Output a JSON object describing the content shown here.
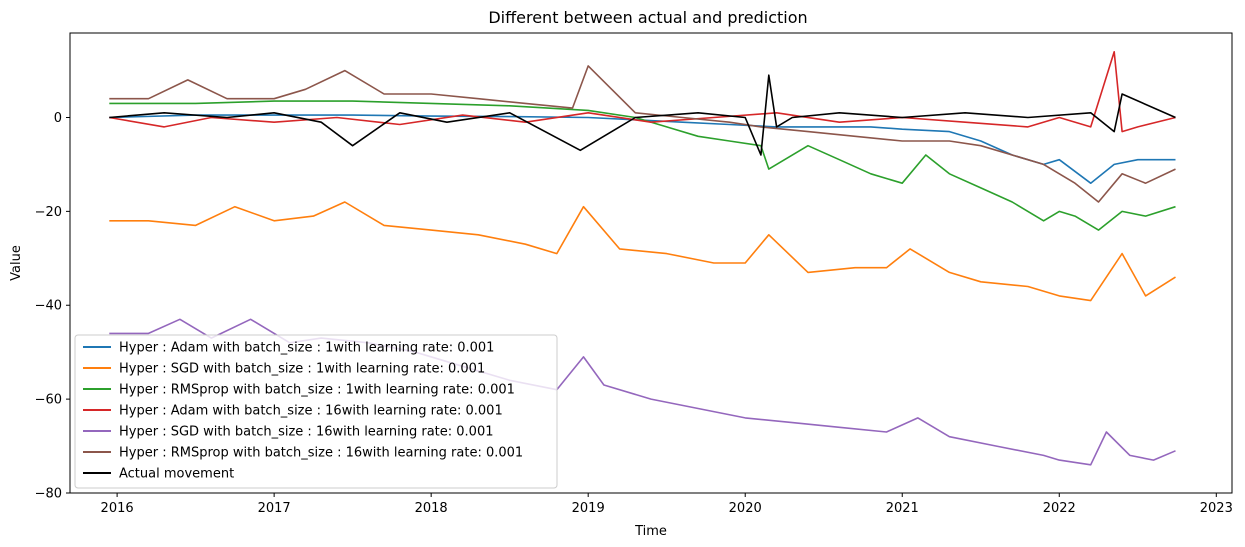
{
  "chart_data": {
    "type": "line",
    "title": "Different between actual and prediction",
    "xlabel": "Time",
    "ylabel": "Value",
    "xlim": [
      2015.7,
      2023.1
    ],
    "ylim": [
      -80,
      18
    ],
    "x_ticks": [
      2016,
      2017,
      2018,
      2019,
      2020,
      2021,
      2022,
      2023
    ],
    "y_ticks": [
      0,
      -20,
      -40,
      -60,
      -80
    ],
    "grid": false,
    "legend_position": "lower-left",
    "series": [
      {
        "name": "Hyper : Adam with batch_size : 1with learning rate: 0.001",
        "color": "#1f77b4",
        "x": [
          2015.95,
          2016.5,
          2017.0,
          2017.5,
          2018.0,
          2018.5,
          2019.0,
          2019.3,
          2019.6,
          2019.9,
          2020.2,
          2020.5,
          2020.8,
          2021.0,
          2021.3,
          2021.5,
          2021.7,
          2021.9,
          2022.0,
          2022.2,
          2022.35,
          2022.5,
          2022.74
        ],
        "y": [
          0,
          0.5,
          0.5,
          0.5,
          0.3,
          0.2,
          0,
          -0.5,
          -1,
          -1.5,
          -2,
          -2,
          -2,
          -2.5,
          -3,
          -5,
          -8,
          -10,
          -9,
          -14,
          -10,
          -9,
          -9
        ]
      },
      {
        "name": "Hyper : SGD with batch_size : 1with learning rate: 0.001",
        "color": "#ff7f0e",
        "x": [
          2015.95,
          2016.2,
          2016.5,
          2016.75,
          2017.0,
          2017.25,
          2017.45,
          2017.7,
          2018.0,
          2018.3,
          2018.6,
          2018.8,
          2018.97,
          2019.2,
          2019.5,
          2019.8,
          2020.0,
          2020.15,
          2020.4,
          2020.7,
          2020.9,
          2021.05,
          2021.3,
          2021.5,
          2021.8,
          2022.0,
          2022.2,
          2022.3,
          2022.4,
          2022.55,
          2022.74
        ],
        "y": [
          -22,
          -22,
          -23,
          -19,
          -22,
          -21,
          -18,
          -23,
          -24,
          -25,
          -27,
          -29,
          -19,
          -28,
          -29,
          -31,
          -31,
          -25,
          -33,
          -32,
          -32,
          -28,
          -33,
          -35,
          -36,
          -38,
          -39,
          -34,
          -29,
          -38,
          -34
        ]
      },
      {
        "name": "Hyper : RMSprop with batch_size : 1with learning rate: 0.001",
        "color": "#2ca02c",
        "x": [
          2015.95,
          2016.5,
          2017.0,
          2017.5,
          2018.0,
          2018.5,
          2019.0,
          2019.3,
          2019.5,
          2019.7,
          2019.9,
          2020.1,
          2020.15,
          2020.4,
          2020.6,
          2020.8,
          2021.0,
          2021.15,
          2021.3,
          2021.5,
          2021.7,
          2021.9,
          2022.0,
          2022.1,
          2022.25,
          2022.4,
          2022.55,
          2022.74
        ],
        "y": [
          3,
          3,
          3.5,
          3.5,
          3,
          2.5,
          1.5,
          0,
          -2,
          -4,
          -5,
          -6,
          -11,
          -6,
          -9,
          -12,
          -14,
          -8,
          -12,
          -15,
          -18,
          -22,
          -20,
          -21,
          -24,
          -20,
          -21,
          -19
        ]
      },
      {
        "name": "Hyper : Adam with batch_size : 16with learning rate: 0.001",
        "color": "#d62728",
        "x": [
          2015.95,
          2016.3,
          2016.6,
          2017.0,
          2017.4,
          2017.8,
          2018.2,
          2018.6,
          2019.0,
          2019.4,
          2019.8,
          2020.2,
          2020.6,
          2021.0,
          2021.4,
          2021.8,
          2022.0,
          2022.2,
          2022.35,
          2022.4,
          2022.5,
          2022.74
        ],
        "y": [
          0,
          -2,
          0,
          -1,
          0,
          -1.5,
          0.5,
          -1,
          1,
          -1,
          0,
          1,
          -1,
          0,
          -1,
          -2,
          0,
          -2,
          14,
          -3,
          -2,
          0
        ]
      },
      {
        "name": "Hyper : SGD with batch_size : 16with learning rate: 0.001",
        "color": "#9467bd",
        "x": [
          2015.95,
          2016.2,
          2016.4,
          2016.6,
          2016.85,
          2017.1,
          2017.3,
          2017.6,
          2017.9,
          2018.2,
          2018.5,
          2018.8,
          2018.97,
          2019.1,
          2019.4,
          2019.7,
          2020.0,
          2020.3,
          2020.6,
          2020.9,
          2021.1,
          2021.3,
          2021.6,
          2021.9,
          2022.0,
          2022.2,
          2022.3,
          2022.45,
          2022.6,
          2022.74
        ],
        "y": [
          -46,
          -46,
          -43,
          -47,
          -43,
          -48,
          -47,
          -48,
          -50,
          -53,
          -56,
          -58,
          -51,
          -57,
          -60,
          -62,
          -64,
          -65,
          -66,
          -67,
          -64,
          -68,
          -70,
          -72,
          -73,
          -74,
          -67,
          -72,
          -73,
          -71
        ]
      },
      {
        "name": "Hyper : RMSprop with batch_size : 16with learning rate: 0.001",
        "color": "#8c564b",
        "x": [
          2015.95,
          2016.2,
          2016.45,
          2016.7,
          2017.0,
          2017.2,
          2017.45,
          2017.7,
          2018.0,
          2018.3,
          2018.6,
          2018.9,
          2019.0,
          2019.3,
          2019.6,
          2019.9,
          2020.1,
          2020.4,
          2020.7,
          2021.0,
          2021.3,
          2021.5,
          2021.7,
          2021.9,
          2022.1,
          2022.25,
          2022.4,
          2022.55,
          2022.74
        ],
        "y": [
          4,
          4,
          8,
          4,
          4,
          6,
          10,
          5,
          5,
          4,
          3,
          2,
          11,
          1,
          0,
          -1,
          -2,
          -3,
          -4,
          -5,
          -5,
          -6,
          -8,
          -10,
          -14,
          -18,
          -12,
          -14,
          -11
        ]
      },
      {
        "name": "Actual movement",
        "color": "#000000",
        "x": [
          2015.95,
          2016.3,
          2016.7,
          2017.0,
          2017.3,
          2017.5,
          2017.8,
          2018.1,
          2018.5,
          2018.95,
          2019.3,
          2019.7,
          2020.0,
          2020.1,
          2020.15,
          2020.2,
          2020.3,
          2020.6,
          2021.0,
          2021.4,
          2021.8,
          2022.2,
          2022.35,
          2022.4,
          2022.74
        ],
        "y": [
          0,
          1,
          0,
          1,
          -1,
          -6,
          1,
          -1,
          1,
          -7,
          0,
          1,
          0,
          -8,
          9,
          -2,
          0,
          1,
          0,
          1,
          0,
          1,
          -3,
          5,
          0
        ]
      }
    ]
  }
}
